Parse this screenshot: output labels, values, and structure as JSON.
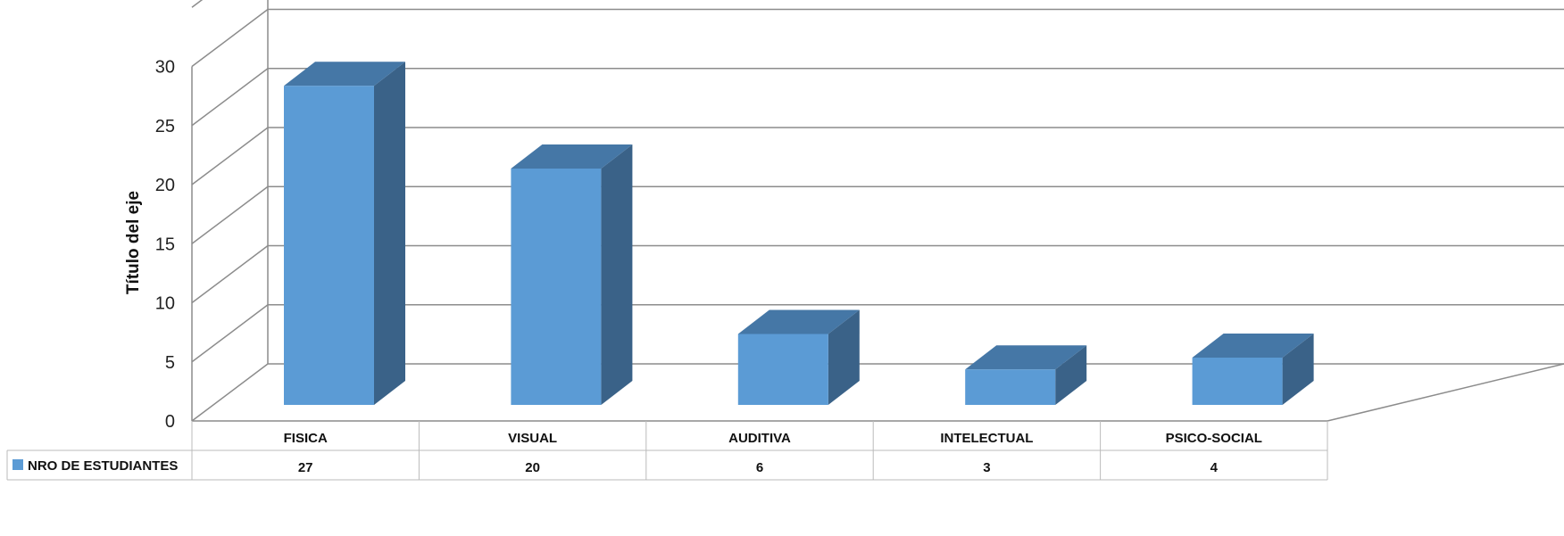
{
  "chart_data": {
    "type": "bar",
    "title": "",
    "ylabel": "Título del eje",
    "xlabel": "",
    "categories": [
      "FISICA",
      "VISUAL",
      "AUDITIVA",
      "INTELECTUAL",
      "PSICO-SOCIAL"
    ],
    "series": [
      {
        "name": "NRO DE ESTUDIANTES",
        "values": [
          27,
          20,
          6,
          3,
          4
        ]
      }
    ],
    "ylim": [
      0,
      35
    ],
    "yticks": [
      0,
      5,
      10,
      15,
      20,
      25,
      30
    ],
    "grid": true,
    "three_d": true,
    "data_table": true,
    "colors": {
      "front": "#5B9BD5",
      "top": "#4577A6",
      "side": "#3A6288",
      "grid": "#8C8C8C"
    }
  }
}
